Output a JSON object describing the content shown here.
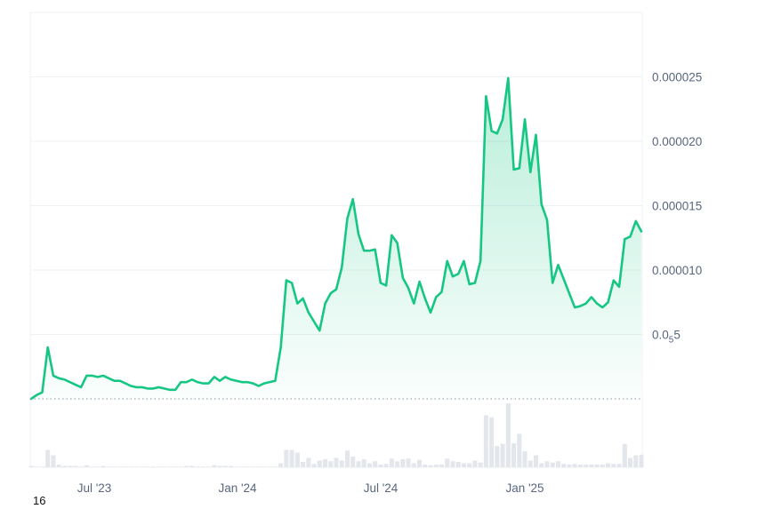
{
  "corner_label": "16",
  "chart_data": {
    "type": "area",
    "title": "",
    "xlabel": "",
    "ylabel": "",
    "x_ticks": [
      "Jul '23",
      "Jan '24",
      "Jul '24",
      "Jan '25"
    ],
    "y_ticks": [
      {
        "value": 2.5e-05,
        "label": "0.000025"
      },
      {
        "value": 2e-05,
        "label": "0.000020"
      },
      {
        "value": 1.5e-05,
        "label": "0.000015"
      },
      {
        "value": 1e-05,
        "label": "0.000010"
      },
      {
        "value": 5e-06,
        "label": "0.0",
        "sub": "5",
        "suffix": "5"
      }
    ],
    "ylim": [
      0,
      3e-05
    ],
    "grid": true,
    "colors": {
      "line": "#16c784",
      "fill": "#16c784",
      "volume": "#e3e6eb",
      "grid": "#eff2f5",
      "baseline": "#8a93a2",
      "tick_text": "#58667e"
    },
    "series": [
      {
        "values": [
          0.0,
          3e-07,
          5e-07,
          4e-06,
          1.8e-06,
          1.6e-06,
          1.5e-06,
          1.3e-06,
          1.1e-06,
          9e-07,
          1.8e-06,
          1.8e-06,
          1.7e-06,
          1.8e-06,
          1.6e-06,
          1.4e-06,
          1.4e-06,
          1.2e-06,
          1e-06,
          9e-07,
          9e-07,
          8e-07,
          8e-07,
          9e-07,
          8e-07,
          7e-07,
          7e-07,
          1.3e-06,
          1.3e-06,
          1.5e-06,
          1.3e-06,
          1.2e-06,
          1.2e-06,
          1.7e-06,
          1.4e-06,
          1.7e-06,
          1.5e-06,
          1.4e-06,
          1.3e-06,
          1.3e-06,
          1.2e-06,
          1e-06,
          1.2e-06,
          1.3e-06,
          1.4e-06,
          4e-06,
          9.2e-06,
          9e-06,
          7.4e-06,
          7.8e-06,
          6.7e-06,
          6e-06,
          5.3e-06,
          7.4e-06,
          8.2e-06,
          8.5e-06,
          1.02e-05,
          1.4e-05,
          1.55e-05,
          1.28e-05,
          1.15e-05,
          1.15e-05,
          1.16e-05,
          9e-06,
          8.8e-06,
          1.27e-05,
          1.21e-05,
          9.4e-06,
          8.6e-06,
          7.4e-06,
          9.1e-06,
          7.8e-06,
          6.7e-06,
          7.9e-06,
          8.3e-06,
          1.07e-05,
          9.5e-06,
          9.7e-06,
          1.07e-05,
          8.9e-06,
          9e-06,
          1.07e-05,
          2.35e-05,
          2.08e-05,
          2.06e-05,
          2.17e-05,
          2.49e-05,
          1.78e-05,
          1.79e-05,
          2.17e-05,
          1.76e-05,
          2.05e-05,
          1.51e-05,
          1.39e-05,
          9e-06,
          1.04e-05,
          9.3e-06,
          8.2e-06,
          7.1e-06,
          7.2e-06,
          7.4e-06,
          7.9e-06,
          7.4e-06,
          7.1e-06,
          7.5e-06,
          9.2e-06,
          8.7e-06,
          1.24e-05,
          1.26e-05,
          1.38e-05,
          1.3e-05
        ]
      }
    ],
    "volume": [
      0.2,
      0.1,
      0.1,
      2.6,
      1.8,
      0.4,
      0.2,
      0.2,
      0.2,
      0.1,
      0.3,
      0.1,
      0.1,
      0.2,
      0.1,
      0.1,
      0.1,
      0.1,
      0.1,
      0.1,
      0.1,
      0.1,
      0.1,
      0.1,
      0.1,
      0.1,
      0.1,
      0.1,
      0.2,
      0.2,
      0.1,
      0.1,
      0.1,
      0.3,
      0.2,
      0.2,
      0.2,
      0.1,
      0.1,
      0.1,
      0.1,
      0.1,
      0.1,
      0.1,
      0.1,
      0.6,
      2.6,
      2.6,
      2.2,
      0.8,
      1.4,
      0.5,
      1.0,
      1.2,
      0.9,
      1.4,
      1.0,
      2.5,
      1.6,
      0.9,
      1.2,
      0.6,
      0.9,
      0.4,
      0.5,
      1.3,
      0.9,
      1.2,
      1.3,
      0.6,
      1.1,
      0.4,
      0.3,
      0.4,
      0.4,
      1.3,
      0.9,
      0.8,
      0.6,
      0.6,
      1.0,
      0.7,
      7.8,
      7.5,
      3.2,
      3.5,
      9.6,
      3.6,
      5.0,
      2.4,
      1.0,
      1.8,
      0.6,
      0.9,
      0.7,
      0.9,
      0.5,
      0.4,
      0.5,
      0.4,
      0.4,
      0.4,
      0.4,
      0.4,
      0.6,
      0.5,
      0.5,
      3.5,
      1.4,
      1.8,
      1.9
    ]
  }
}
